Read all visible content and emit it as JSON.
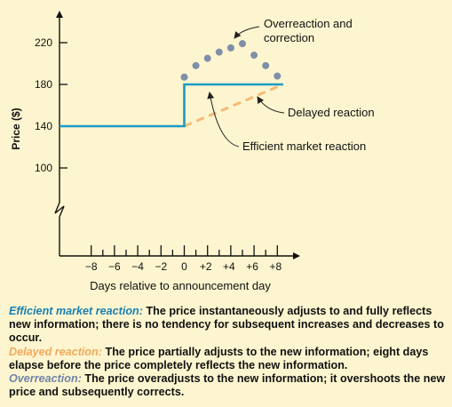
{
  "chart_data": {
    "type": "line",
    "title": "",
    "xlabel": "Days relative to announcement day",
    "ylabel": "Price ($)",
    "x_ticks": [
      -8,
      -6,
      -4,
      -2,
      0,
      2,
      4,
      6,
      8
    ],
    "x_tick_labels": [
      "−8",
      "−6",
      "−4",
      "−2",
      "0",
      "+2",
      "+4",
      "+6",
      "+8"
    ],
    "y_ticks": [
      100,
      140,
      180,
      220
    ],
    "y_tick_labels": [
      "100",
      "140",
      "180",
      "220"
    ],
    "xlim": [
      -10,
      9
    ],
    "ylim": [
      100,
      240
    ],
    "grid": false,
    "axis_break": true,
    "series": [
      {
        "name": "Efficient market reaction",
        "style": "solid-line",
        "color": "#1a9bc6",
        "x": [
          -10,
          0,
          0,
          8.5
        ],
        "y": [
          140,
          140,
          180,
          180
        ]
      },
      {
        "name": "Delayed reaction",
        "style": "dashed-line",
        "color": "#f4b976",
        "x": [
          0,
          8.5
        ],
        "y": [
          140,
          180
        ]
      },
      {
        "name": "Overreaction and correction",
        "style": "dots",
        "color": "#7f8fa8",
        "x": [
          0,
          1,
          2,
          3,
          4,
          5,
          6,
          7,
          8
        ],
        "y": [
          187,
          198,
          205,
          211,
          215,
          219,
          208,
          198,
          188
        ]
      }
    ],
    "annotations": [
      {
        "line1": "Overreaction and",
        "line2": "correction"
      },
      {
        "text": "Delayed reaction"
      },
      {
        "text": "Efficient market reaction"
      }
    ]
  },
  "legend": {
    "efficient": {
      "term": "Efficient market reaction:",
      "text": " The price instantaneously adjusts to and fully reflects new information; there is no tendency for subsequent increases and decreases to occur.",
      "color": "#1a7fb3"
    },
    "delayed": {
      "term": "Delayed reaction:",
      "text": " The price partially adjusts to the new information; eight days elapse before the price completely reflects the new information.",
      "color": "#f2a95b"
    },
    "overreaction": {
      "term": "Overreaction:",
      "text": " The price overadjusts to the new information; it overshoots the new price and subsequently corrects.",
      "color": "#6f84a6"
    }
  }
}
